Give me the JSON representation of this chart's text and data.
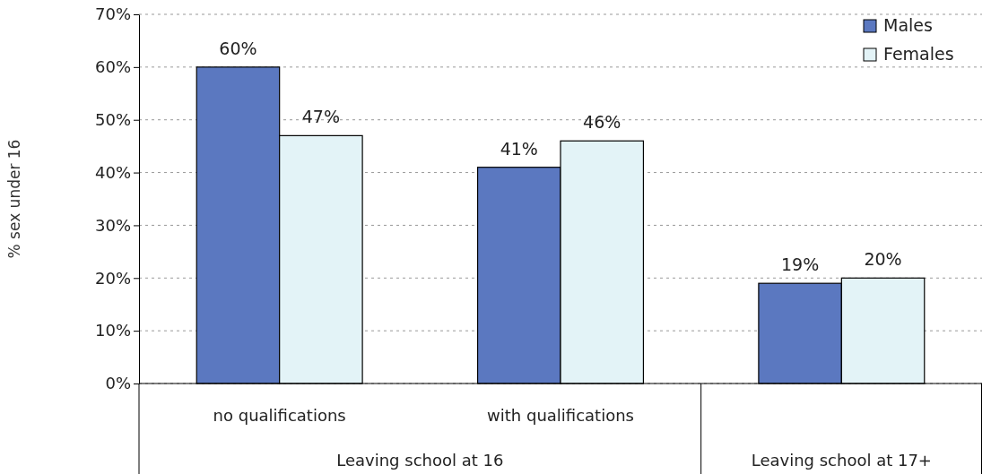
{
  "chart_data": {
    "type": "bar",
    "ylabel": "% sex under 16",
    "categories": [
      "no qualifications",
      "with qualifications",
      null
    ],
    "series": [
      {
        "name": "Males",
        "color": "#5b78c0",
        "values": [
          60,
          41,
          19
        ],
        "value_labels": [
          "60%",
          "41%",
          "19%"
        ]
      },
      {
        "name": "Females",
        "color": "#e3f3f7",
        "values": [
          47,
          46,
          20
        ],
        "value_labels": [
          "47%",
          "46%",
          "20%"
        ]
      }
    ],
    "ylim": [
      0,
      70
    ],
    "yticks": [
      {
        "value": 0,
        "label": "0%"
      },
      {
        "value": 10,
        "label": "10%"
      },
      {
        "value": 20,
        "label": "20%"
      },
      {
        "value": 30,
        "label": "30%"
      },
      {
        "value": 40,
        "label": "40%"
      },
      {
        "value": 50,
        "label": "50%"
      },
      {
        "value": 60,
        "label": "60%"
      },
      {
        "value": 70,
        "label": "70%"
      }
    ],
    "annotations": [
      "Leaving school at 16",
      "Leaving school at 17+"
    ],
    "grid": "y",
    "legend": "top right"
  }
}
